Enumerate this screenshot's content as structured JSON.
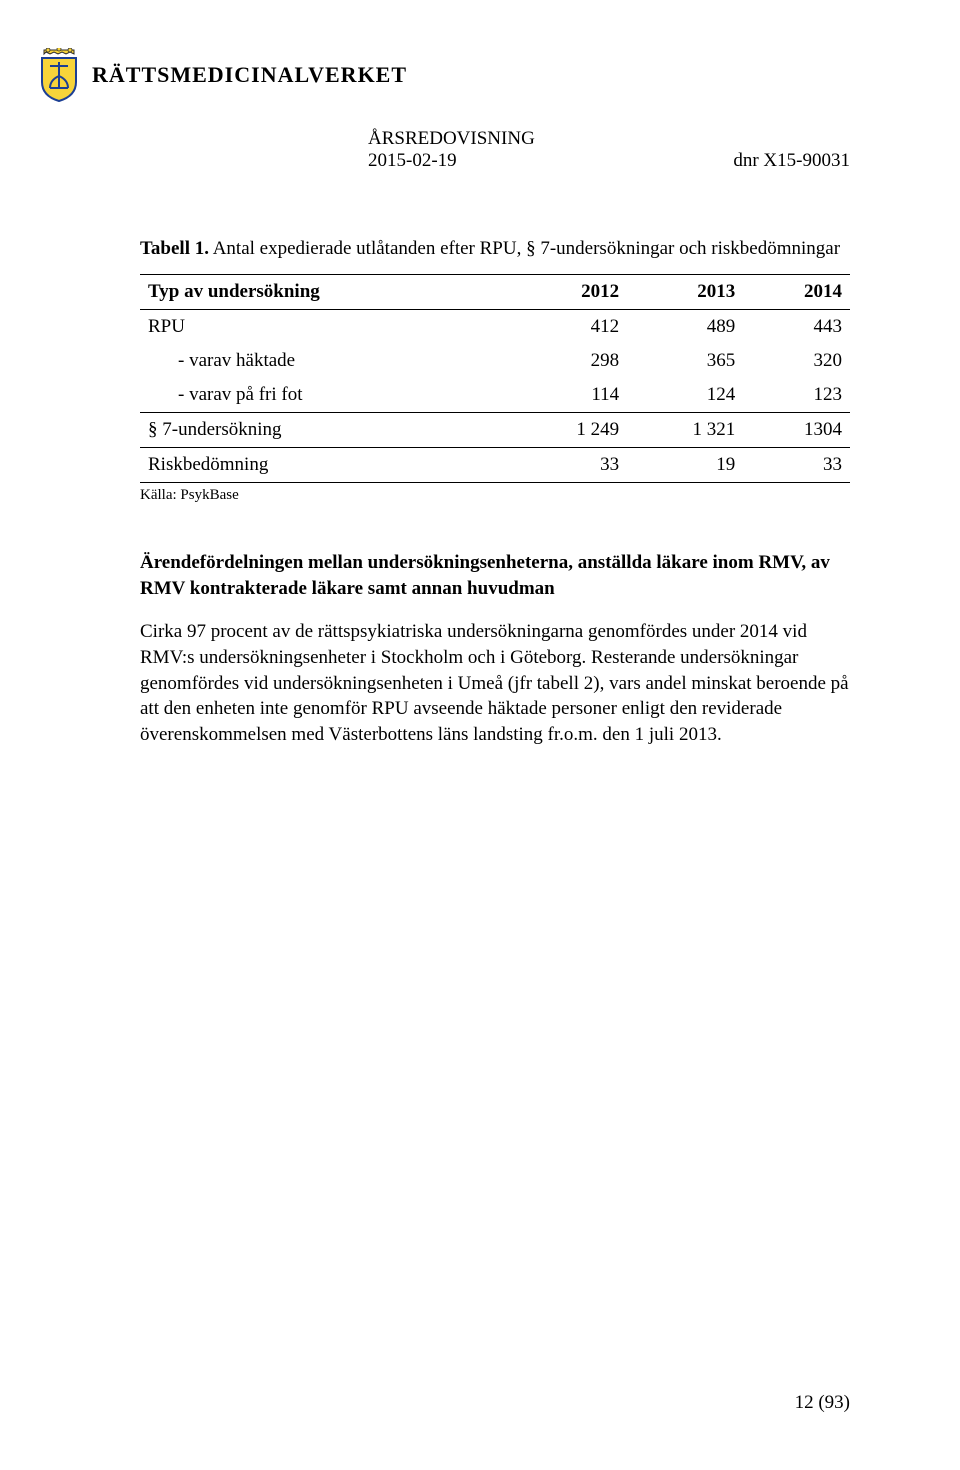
{
  "header": {
    "org_name": "RÄTTSMEDICINALVERKET",
    "title": "ÅRSREDOVISNING",
    "date": "2015-02-19",
    "dnr": "dnr X15-90031",
    "crest_colors": {
      "shield_fill": "#f7d43a",
      "shield_stroke": "#1c3f94",
      "crown_fill": "#f7d43a",
      "crown_stroke": "#2b2b2b"
    }
  },
  "table1": {
    "caption_bold": "Tabell 1.",
    "caption_rest": " Antal expedierade utlåtanden efter RPU, § 7-undersökningar och riskbedömningar",
    "columns": [
      "Typ av undersökning",
      "2012",
      "2013",
      "2014"
    ],
    "rows": [
      {
        "label": "RPU",
        "c1": "412",
        "c2": "489",
        "c3": "443"
      },
      {
        "label": "-   varav häktade",
        "c1": "298",
        "c2": "365",
        "c3": "320",
        "indent": true
      },
      {
        "label": "-   varav på fri fot",
        "c1": "114",
        "c2": "124",
        "c3": "123",
        "indent": true
      },
      {
        "label": "§ 7-undersökning",
        "c1": "1 249",
        "c2": "1 321",
        "c3": "1304",
        "sep": true
      },
      {
        "label": "Riskbedömning",
        "c1": "33",
        "c2": "19",
        "c3": "33",
        "sep": true,
        "last": true
      }
    ],
    "source": "Källa: PsykBase"
  },
  "subheading": "Ärendefördelningen mellan undersökningsenheterna, anställda läkare inom RMV, av RMV kontrakterade läkare samt annan huvudman",
  "paragraph": "Cirka 97 procent av de rättspsykiatriska undersökningarna genomfördes under 2014 vid RMV:s undersökningsenheter i Stockholm och i Göteborg. Resterande undersökningar genomfördes vid undersökningsenheten i Umeå (jfr tabell 2), vars andel minskat beroende på att den enheten inte genomför RPU avseende häktade personer enligt den reviderade överenskommelsen med Västerbottens läns landsting fr.o.m. den 1 juli 2013.",
  "footer": {
    "page": "12 (93)"
  },
  "typography": {
    "body_fontsize": 19,
    "source_fontsize": 15,
    "org_fontsize": 22,
    "font_family": "Times New Roman"
  },
  "colors": {
    "text": "#000000",
    "background": "#ffffff",
    "border": "#000000"
  }
}
